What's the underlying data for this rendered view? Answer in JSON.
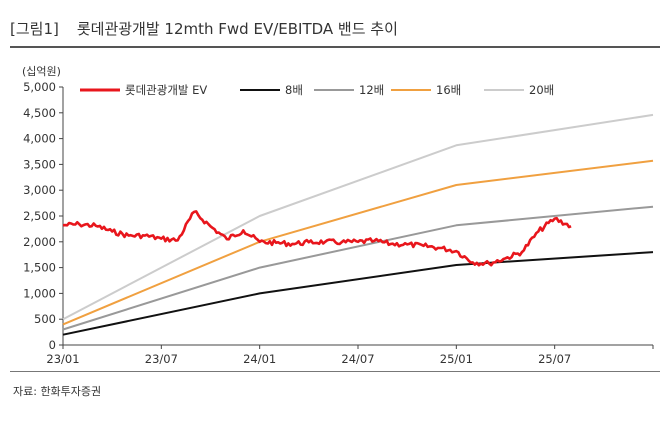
{
  "figure": {
    "label": "[그림1]",
    "title": "롯데관광개발 12mth Fwd EV/EBITDA 밴드 추이",
    "unit": "(십억원)",
    "source": "자료: 한화투자증권"
  },
  "chart_data": {
    "type": "line",
    "title": "롯데관광개발 12mth Fwd EV/EBITDA 밴드 추이",
    "ylabel": "(십억원)",
    "xlabel": "",
    "ylim": [
      0,
      5000
    ],
    "yticks": [
      0,
      500,
      1000,
      1500,
      2000,
      2500,
      3000,
      3500,
      4000,
      4500,
      5000
    ],
    "ytick_labels": [
      "0",
      "500",
      "1,000",
      "1,500",
      "2,000",
      "2,500",
      "3,000",
      "3,500",
      "4,000",
      "4,500",
      "5,000"
    ],
    "xlim": [
      "2023-01",
      "2026-01"
    ],
    "xticks": [
      "2023-01",
      "2023-07",
      "2024-01",
      "2024-07",
      "2025-01",
      "2025-07",
      "2026-01"
    ],
    "xtick_labels": [
      "23/01",
      "23/07",
      "24/01",
      "24/07",
      "25/01",
      "25/07",
      ""
    ],
    "grid": false,
    "legend": "top",
    "series": [
      {
        "name": "롯데관광개발 EV",
        "color": "#e8161c",
        "points": [
          [
            "2023-01",
            2320
          ],
          [
            "2023-02",
            2340
          ],
          [
            "2023-03",
            2310
          ],
          [
            "2023-04",
            2200
          ],
          [
            "2023-05",
            2120
          ],
          [
            "2023-06",
            2120
          ],
          [
            "2023-07",
            2060
          ],
          [
            "2023-08",
            2030
          ],
          [
            "2023-09",
            2580
          ],
          [
            "2023-10",
            2300
          ],
          [
            "2023-11",
            2050
          ],
          [
            "2023-12",
            2220
          ],
          [
            "2024-01",
            2000
          ],
          [
            "2024-02",
            1980
          ],
          [
            "2024-03",
            1960
          ],
          [
            "2024-04",
            1990
          ],
          [
            "2024-05",
            2000
          ],
          [
            "2024-06",
            1990
          ],
          [
            "2024-07",
            2000
          ],
          [
            "2024-08",
            2020
          ],
          [
            "2024-09",
            1960
          ],
          [
            "2024-10",
            1950
          ],
          [
            "2024-11",
            1920
          ],
          [
            "2024-12",
            1880
          ],
          [
            "2025-01",
            1820
          ],
          [
            "2025-02",
            1600
          ],
          [
            "2025-03",
            1580
          ],
          [
            "2025-04",
            1680
          ],
          [
            "2025-05",
            1800
          ],
          [
            "2025-06",
            2200
          ],
          [
            "2025-07",
            2450
          ],
          [
            "2025-08",
            2300
          ]
        ]
      },
      {
        "name": "8배",
        "color": "#111111",
        "points": [
          [
            "2023-01",
            200
          ],
          [
            "2024-01",
            1000
          ],
          [
            "2025-01",
            1550
          ],
          [
            "2026-01",
            1800
          ]
        ]
      },
      {
        "name": "12배",
        "color": "#999999",
        "points": [
          [
            "2023-01",
            300
          ],
          [
            "2024-01",
            1500
          ],
          [
            "2025-01",
            2320
          ],
          [
            "2026-01",
            2680
          ]
        ]
      },
      {
        "name": "16배",
        "color": "#f0a040",
        "points": [
          [
            "2023-01",
            400
          ],
          [
            "2024-01",
            2000
          ],
          [
            "2025-01",
            3100
          ],
          [
            "2026-01",
            3570
          ]
        ]
      },
      {
        "name": "20배",
        "color": "#cccccc",
        "points": [
          [
            "2023-01",
            500
          ],
          [
            "2024-01",
            2500
          ],
          [
            "2025-01",
            3870
          ],
          [
            "2026-01",
            4460
          ]
        ]
      }
    ]
  }
}
